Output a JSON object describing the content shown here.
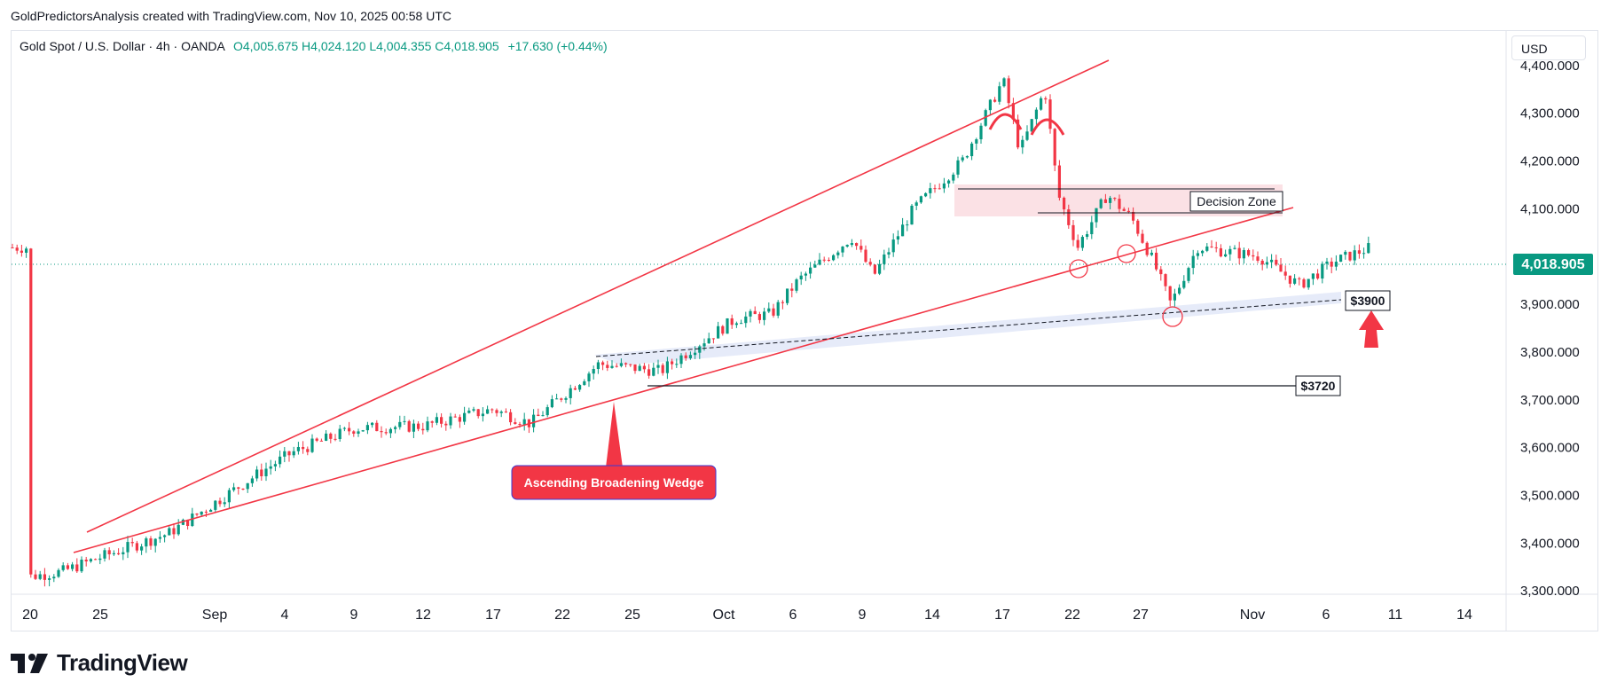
{
  "caption": "GoldPredictorsAnalysis created with TradingView.com, Nov 10, 2025 00:58 UTC",
  "symbol": {
    "name": "Gold Spot / U.S. Dollar · 4h · OANDA",
    "ohlc": "O4,005.675  H4,024.120  L4,004.355  C4,018.905",
    "change": "+17.630 (+0.44%)"
  },
  "currency": "USD",
  "brand": "TradingView",
  "colors": {
    "up": "#089981",
    "down": "#f23645",
    "pattern": "#f23645",
    "last_price_bg": "#089981",
    "label_bg": "#f23645"
  },
  "annotations": {
    "decision_zone": "Decision Zone",
    "support_3900": "$3900",
    "support_3720": "$3720",
    "pattern_label": "Ascending Broadening Wedge"
  },
  "chart_data": {
    "type": "candlestick",
    "timeframe": "4h",
    "x_ticks": [
      "20",
      "25",
      "Sep",
      "4",
      "9",
      "12",
      "17",
      "22",
      "25",
      "Oct",
      "6",
      "9",
      "14",
      "17",
      "22",
      "27",
      "Nov",
      "6",
      "11",
      "14"
    ],
    "y_ticks": [
      "4,400.000",
      "4,300.000",
      "4,200.000",
      "4,100.000",
      "3,900.000",
      "3,800.000",
      "3,700.000",
      "3,600.000",
      "3,500.000",
      "3,400.000",
      "3,300.000"
    ],
    "ylim": [
      3250,
      4530
    ],
    "last_price": "4,018.905",
    "close_path": [
      {
        "x": "Aug 20",
        "y": 3330
      },
      {
        "x": "Aug 22",
        "y": 3340
      },
      {
        "x": "Aug 25",
        "y": 3370
      },
      {
        "x": "Aug 29",
        "y": 3420
      },
      {
        "x": "Sep 3",
        "y": 3550
      },
      {
        "x": "Sep 5",
        "y": 3590
      },
      {
        "x": "Sep 9",
        "y": 3640
      },
      {
        "x": "Sep 12",
        "y": 3645
      },
      {
        "x": "Sep 17",
        "y": 3680
      },
      {
        "x": "Sep 19",
        "y": 3650
      },
      {
        "x": "Sep 23",
        "y": 3775
      },
      {
        "x": "Sep 26",
        "y": 3760
      },
      {
        "x": "Sep 29",
        "y": 3820
      },
      {
        "x": "Oct 1",
        "y": 3870
      },
      {
        "x": "Oct 3",
        "y": 3880
      },
      {
        "x": "Oct 6",
        "y": 3950
      },
      {
        "x": "Oct 8",
        "y": 4040
      },
      {
        "x": "Oct 9",
        "y": 3960
      },
      {
        "x": "Oct 13",
        "y": 4100
      },
      {
        "x": "Oct 15",
        "y": 4200
      },
      {
        "x": "Oct 17",
        "y": 4370
      },
      {
        "x": "Oct 18",
        "y": 4220
      },
      {
        "x": "Oct 20",
        "y": 4350
      },
      {
        "x": "Oct 21",
        "y": 4130
      },
      {
        "x": "Oct 22",
        "y": 4020
      },
      {
        "x": "Oct 23",
        "y": 4130
      },
      {
        "x": "Oct 26",
        "y": 4080
      },
      {
        "x": "Oct 27",
        "y": 3990
      },
      {
        "x": "Oct 28",
        "y": 3900
      },
      {
        "x": "Oct 30",
        "y": 4020
      },
      {
        "x": "Nov 2",
        "y": 4000
      },
      {
        "x": "Nov 4",
        "y": 3940
      },
      {
        "x": "Nov 6",
        "y": 3990
      },
      {
        "x": "Nov 7",
        "y": 4018.905
      }
    ]
  }
}
